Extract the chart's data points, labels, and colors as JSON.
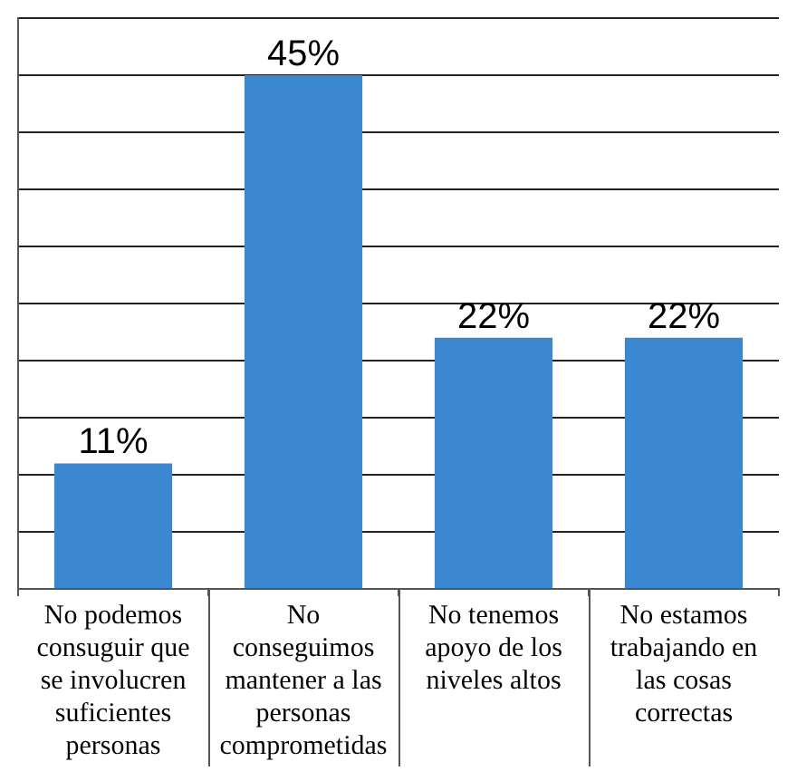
{
  "chart_data": {
    "type": "bar",
    "categories": [
      "No podemos consuguir que se involucren suficientes personas",
      "No conseguimos mantener a las personas comprometidas",
      "No tenemos apoyo de los niveles altos",
      "No estamos trabajando en las cosas correctas"
    ],
    "values": [
      11,
      45,
      22,
      22
    ],
    "value_labels": [
      "11%",
      "45%",
      "22%",
      "22%"
    ],
    "color": "#3b87d0",
    "ylim": [
      0,
      50
    ],
    "yticks": [
      {
        "value": 0,
        "label": null
      },
      {
        "value": 5,
        "label": null
      },
      {
        "value": 10,
        "label": null
      },
      {
        "value": 15,
        "label": null
      },
      {
        "value": 20,
        "label": null
      },
      {
        "value": 25,
        "label": null
      },
      {
        "value": 30,
        "label": null
      },
      {
        "value": 35,
        "label": null
      },
      {
        "value": 40,
        "label": null
      },
      {
        "value": 45,
        "label": null
      },
      {
        "value": 50,
        "label": null
      }
    ],
    "grid": "y",
    "tick_labels": "x"
  }
}
